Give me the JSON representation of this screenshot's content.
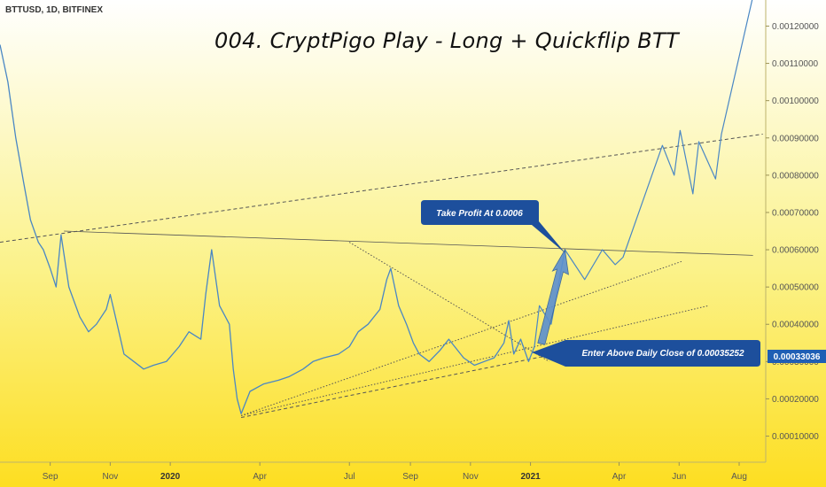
{
  "symbol": "BTTUSD, 1D, BITFINEX",
  "title": "004. CryptPigo Play - Long + Quickflip BTT",
  "colors": {
    "bg_top": "#ffffff",
    "bg_mid": "#fbf28a",
    "bg_bottom": "#fdde21",
    "price_line": "#4a87c4",
    "callout": "#1d4f9c",
    "arrow": "#5b8fd0",
    "current_price_badge": "#1f5fb4"
  },
  "annotations": {
    "take_profit": "Take Profit At 0.0006",
    "entry": "Enter Above Daily Close of 0.00035252"
  },
  "current_price": "0.00033036",
  "chart_data": {
    "type": "line",
    "title": "004. CryptPigo Play - Long + Quickflip BTT",
    "x_ticks": [
      {
        "label": "Sep",
        "date": "2019-09-01",
        "bold": false
      },
      {
        "label": "Nov",
        "date": "2019-11-01",
        "bold": false
      },
      {
        "label": "2020",
        "date": "2020-01-01",
        "bold": true
      },
      {
        "label": "Apr",
        "date": "2020-04-01",
        "bold": false
      },
      {
        "label": "Jul",
        "date": "2020-07-01",
        "bold": false
      },
      {
        "label": "Sep",
        "date": "2020-09-01",
        "bold": false
      },
      {
        "label": "Nov",
        "date": "2020-11-01",
        "bold": false
      },
      {
        "label": "2021",
        "date": "2021-01-01",
        "bold": true
      },
      {
        "label": "Apr",
        "date": "2021-04-01",
        "bold": false
      },
      {
        "label": "Jun",
        "date": "2021-06-01",
        "bold": false
      },
      {
        "label": "Aug",
        "date": "2021-08-01",
        "bold": false
      }
    ],
    "y_ticks": [
      "0.00010000",
      "0.00020000",
      "0.00030000",
      "0.00040000",
      "0.00050000",
      "0.00060000",
      "0.00070000",
      "0.00080000",
      "0.00090000",
      "0.00100000",
      "0.00110000",
      "0.00120000"
    ],
    "y_tick_values": [
      0.0001,
      0.0002,
      0.0003,
      0.0004,
      0.0005,
      0.0006,
      0.0007,
      0.0008,
      0.0009,
      0.001,
      0.0011,
      0.0012
    ],
    "ylim": [
      3e-05,
      0.00127
    ],
    "xlim": [
      "2019-07-12",
      "2021-08-28"
    ],
    "price_series": {
      "x": [
        "2019-07-12",
        "2019-07-20",
        "2019-07-28",
        "2019-08-05",
        "2019-08-12",
        "2019-08-20",
        "2019-08-25",
        "2019-09-01",
        "2019-09-07",
        "2019-09-12",
        "2019-09-20",
        "2019-10-01",
        "2019-10-10",
        "2019-10-18",
        "2019-10-28",
        "2019-11-01",
        "2019-11-08",
        "2019-11-15",
        "2019-11-25",
        "2019-12-05",
        "2019-12-15",
        "2019-12-28",
        "2020-01-10",
        "2020-01-20",
        "2020-02-01",
        "2020-02-06",
        "2020-02-12",
        "2020-02-20",
        "2020-03-01",
        "2020-03-05",
        "2020-03-09",
        "2020-03-13",
        "2020-03-22",
        "2020-04-05",
        "2020-04-20",
        "2020-05-01",
        "2020-05-15",
        "2020-05-25",
        "2020-06-05",
        "2020-06-20",
        "2020-07-01",
        "2020-07-10",
        "2020-07-20",
        "2020-08-01",
        "2020-08-08",
        "2020-08-12",
        "2020-08-20",
        "2020-08-28",
        "2020-09-04",
        "2020-09-10",
        "2020-09-20",
        "2020-10-01",
        "2020-10-10",
        "2020-10-25",
        "2020-11-05",
        "2020-11-15",
        "2020-11-25",
        "2020-12-05",
        "2020-12-10",
        "2020-12-15",
        "2020-12-22",
        "2020-12-30",
        "2021-01-05"
      ],
      "y": [
        0.00115,
        0.00105,
        0.0009,
        0.00078,
        0.00068,
        0.00062,
        0.0006,
        0.00055,
        0.0005,
        0.00064,
        0.0005,
        0.00042,
        0.00038,
        0.0004,
        0.00044,
        0.00048,
        0.0004,
        0.00032,
        0.0003,
        0.00028,
        0.00029,
        0.0003,
        0.00034,
        0.00038,
        0.00036,
        0.00048,
        0.0006,
        0.00045,
        0.0004,
        0.00028,
        0.0002,
        0.00016,
        0.00022,
        0.00024,
        0.00025,
        0.00026,
        0.00028,
        0.0003,
        0.00031,
        0.00032,
        0.00034,
        0.00038,
        0.0004,
        0.00044,
        0.00052,
        0.00055,
        0.00045,
        0.0004,
        0.00035,
        0.00032,
        0.0003,
        0.00033,
        0.00036,
        0.00031,
        0.00029,
        0.0003,
        0.00031,
        0.00035,
        0.00041,
        0.00032,
        0.00036,
        0.0003,
        0.00034
      ]
    },
    "projection": {
      "x": [
        "2021-01-05",
        "2021-01-10",
        "2021-01-22",
        "2021-02-05",
        "2021-02-25",
        "2021-03-15",
        "2021-03-28",
        "2021-04-05",
        "2021-05-15",
        "2021-05-27",
        "2021-06-02",
        "2021-06-15",
        "2021-06-21",
        "2021-07-08",
        "2021-07-14",
        "2021-08-15"
      ],
      "y": [
        0.00034,
        0.00045,
        0.0004,
        0.0006,
        0.00052,
        0.0006,
        0.00056,
        0.00058,
        0.00088,
        0.0008,
        0.00092,
        0.00075,
        0.00089,
        0.00079,
        0.00091,
        0.00128
      ]
    },
    "trendlines": [
      {
        "x": [
          "2019-07-12",
          "2021-08-25"
        ],
        "y": [
          0.00062,
          0.00091
        ],
        "style": "dashed"
      },
      {
        "x": [
          "2019-09-15",
          "2021-08-15"
        ],
        "y": [
          0.00065,
          0.000585
        ],
        "style": "solid"
      },
      {
        "x": [
          "2020-07-01",
          "2021-01-20"
        ],
        "y": [
          0.00062,
          0.0003
        ],
        "style": "dotted"
      },
      {
        "x": [
          "2020-03-13",
          "2021-06-05"
        ],
        "y": [
          0.000155,
          0.00057
        ],
        "style": "dotted"
      },
      {
        "x": [
          "2020-03-13",
          "2021-07-01"
        ],
        "y": [
          0.000155,
          0.00045
        ],
        "style": "dotted"
      },
      {
        "x": [
          "2020-03-13",
          "2021-01-26"
        ],
        "y": [
          0.00015,
          0.00032
        ],
        "style": "dashed"
      }
    ],
    "grid": false,
    "y_axis_side": "right"
  }
}
